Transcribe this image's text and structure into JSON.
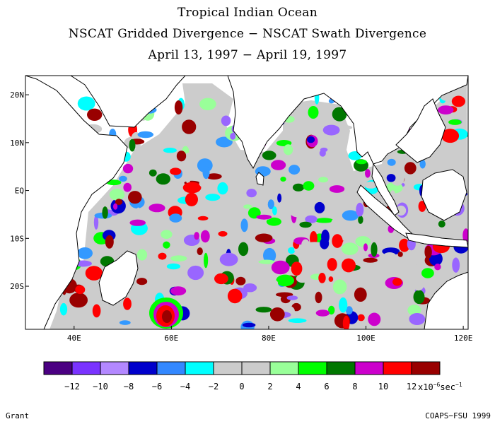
{
  "title": {
    "line1": "Tropical Indian Ocean",
    "line2": "NSCAT Gridded Divergence − NSCAT Swath Divergence",
    "line3": "April 13, 1997 − April 19, 1997"
  },
  "map": {
    "lon_range": [
      30,
      121
    ],
    "lat_range": [
      -29,
      24
    ],
    "lon_ticks": [
      {
        "value": 40,
        "label": "40E"
      },
      {
        "value": 60,
        "label": "60E"
      },
      {
        "value": 80,
        "label": "80E"
      },
      {
        "value": 100,
        "label": "100E"
      },
      {
        "value": 120,
        "label": "120E"
      }
    ],
    "lat_ticks": [
      {
        "value": 20,
        "label": "20N"
      },
      {
        "value": 10,
        "label": "10N"
      },
      {
        "value": 0,
        "label": "EQ"
      },
      {
        "value": -10,
        "label": "10S"
      },
      {
        "value": -20,
        "label": "20S"
      }
    ],
    "field_colors": [
      "#cccccc",
      "#cccccc",
      "#cccccc",
      "#00ffff",
      "#99ff99",
      "#3399ff",
      "#00ff00",
      "#0000cc",
      "#007700",
      "#cc00cc",
      "#ff0000",
      "#990000",
      "#9966ff"
    ]
  },
  "colorbar": {
    "colors": [
      "#4b0082",
      "#7a33ff",
      "#b388ff",
      "#0000cc",
      "#3388ff",
      "#00ffff",
      "#cccccc",
      "#cccccc",
      "#99ff99",
      "#00ff00",
      "#007700",
      "#cc00cc",
      "#ff0000",
      "#990000"
    ],
    "labels": [
      "−12",
      "−10",
      "−8",
      "−6",
      "−4",
      "−2",
      "0",
      "2",
      "4",
      "6",
      "8",
      "10",
      "12"
    ],
    "unit_prefix": "x10",
    "unit_exp1": "−6",
    "unit_mid": "sec",
    "unit_exp2": "−1"
  },
  "footer": {
    "left": "Grant",
    "right": "COAPS−FSU 1999"
  }
}
